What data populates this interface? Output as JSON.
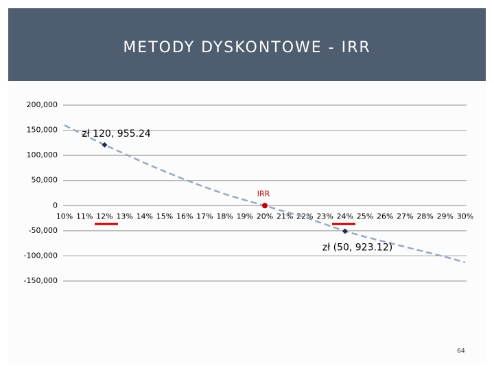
{
  "chart_data": {
    "type": "line",
    "title": "METODY DYSKONTOWE - IRR",
    "categories": [
      "10%",
      "11%",
      "12%",
      "13%",
      "14%",
      "15%",
      "16%",
      "17%",
      "18%",
      "19%",
      "20%",
      "21%",
      "22%",
      "23%",
      "24%",
      "25%",
      "26%",
      "27%",
      "28%",
      "29%",
      "30%"
    ],
    "series": [
      {
        "color": "#9aa9bf",
        "values": [
          160000,
          140000,
          120955.24,
          103000,
          85000,
          68000,
          52000,
          37000,
          23000,
          11000,
          0,
          -12000,
          -23000,
          -37000,
          -50923.12,
          -62000,
          -72000,
          -82000,
          -92000,
          -102000,
          -113000
        ]
      }
    ],
    "points": [
      {
        "category": "12%",
        "value": 120955.24,
        "label": "zł 120, 955.24",
        "color": "#1f2d4d"
      },
      {
        "category": "20%",
        "value": 0,
        "label": "IRR",
        "color": "#c00000"
      },
      {
        "category": "24%",
        "value": -50923.12,
        "label": "zł (50, 923.12)",
        "color": "#1f2d4d"
      }
    ],
    "ylim": [
      -150000,
      200000
    ],
    "yticks": [
      {
        "value": 200000,
        "label": "200,000"
      },
      {
        "value": 150000,
        "label": "150,000"
      },
      {
        "value": 100000,
        "label": "100,000"
      },
      {
        "value": 50000,
        "label": "50,000"
      },
      0,
      {
        "value": -50000,
        "label": "-50,000"
      },
      {
        "value": -100000,
        "label": "-100,000"
      },
      {
        "value": -150000,
        "label": "-150,000"
      }
    ],
    "grid": true
  },
  "page_number": "64"
}
